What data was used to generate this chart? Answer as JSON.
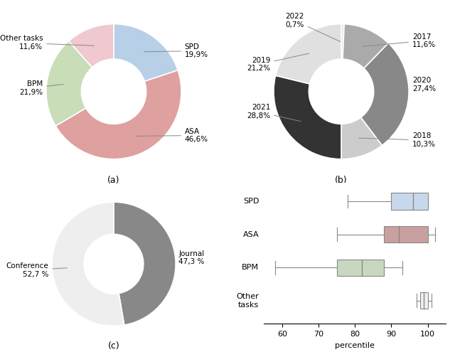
{
  "pie_a": {
    "labels": [
      "SPD",
      "ASA",
      "BPM",
      "Other tasks"
    ],
    "values": [
      19.9,
      46.6,
      21.9,
      11.6
    ],
    "colors": [
      "#b8cfe8",
      "#dfa0a0",
      "#c8ddb8",
      "#f0c8d0"
    ],
    "donut_width": 0.52
  },
  "pie_b": {
    "labels": [
      "2022",
      "2017",
      "2020",
      "2018",
      "2021",
      "2019"
    ],
    "values": [
      0.7,
      11.6,
      27.4,
      10.3,
      28.8,
      21.2
    ],
    "colors": [
      "#e8e8e8",
      "#aaaaaa",
      "#888888",
      "#cccccc",
      "#333333",
      "#e0e0e0"
    ],
    "donut_width": 0.52
  },
  "pie_c": {
    "labels": [
      "Journal",
      "Conference"
    ],
    "values": [
      47.3,
      52.7
    ],
    "colors": [
      "#888888",
      "#eeeeee"
    ],
    "donut_width": 0.52
  },
  "box_d": {
    "categories": [
      "SPD",
      "ASA",
      "BPM",
      "Other\ntasks"
    ],
    "whisker_low": [
      78,
      75,
      58,
      97
    ],
    "q1": [
      90,
      88,
      75,
      98
    ],
    "median": [
      96,
      92,
      82,
      99
    ],
    "q3": [
      100,
      100,
      88,
      100
    ],
    "whisker_high": [
      100,
      102,
      93,
      101
    ],
    "colors": [
      "#c8d8ec",
      "#c8a0a0",
      "#c8d8c0",
      "#f0f0f0"
    ],
    "xlabel": "percentile",
    "xlim": [
      55,
      105
    ],
    "xticks": [
      60,
      70,
      80,
      90,
      100
    ]
  },
  "background": "#ffffff"
}
